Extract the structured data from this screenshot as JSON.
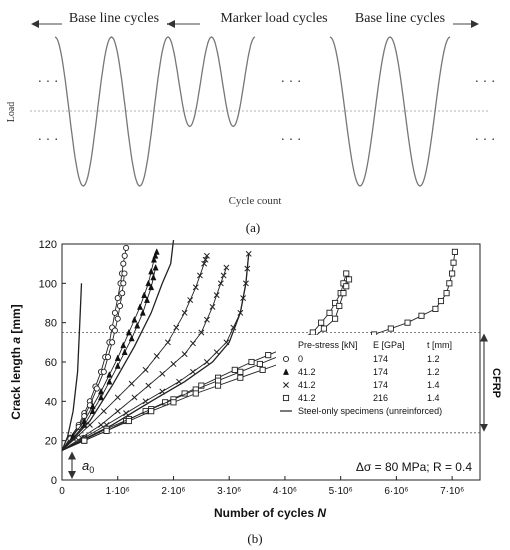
{
  "chart_data": [
    {
      "panel": "(a)",
      "type": "line",
      "segment_labels": [
        "Base line cycles",
        "Marker load cycles",
        "Base line cycles"
      ],
      "ylabel": "Load",
      "xlabel": "Cycle count",
      "ellipsis": "· · ·",
      "waveform": {
        "base_cycle_amplitude": 1.0,
        "marker_cycle_amplitude": 0.6,
        "segments": [
          {
            "label": "Base line cycles",
            "cycles": 2
          },
          {
            "label": "Marker load cycles",
            "cycles": 2
          },
          {
            "label": "Base line cycles",
            "cycles": 2
          }
        ]
      }
    },
    {
      "panel": "(b)",
      "type": "line",
      "xlabel": "Number of cycles N",
      "xlabel_parts": {
        "main": "Number of cycles ",
        "var": "N"
      },
      "ylabel": "Crack length a [mm]",
      "ylabel_parts": {
        "pre": "Crack length ",
        "var": "a",
        "post": " [mm]"
      },
      "xlim": [
        0,
        7500000
      ],
      "ylim": [
        0,
        120
      ],
      "x_ticks": [
        {
          "value": 0,
          "label": "0"
        },
        {
          "value": 1000000,
          "label": "1·10⁶"
        },
        {
          "value": 2000000,
          "label": "2·10⁶"
        },
        {
          "value": 3000000,
          "label": "3·10⁶"
        },
        {
          "value": 4000000,
          "label": "4·10⁶"
        },
        {
          "value": 5000000,
          "label": "5·10⁶"
        },
        {
          "value": 6000000,
          "label": "6·10⁶"
        },
        {
          "value": 7000000,
          "label": "7·10⁶"
        }
      ],
      "y_ticks": [
        0,
        20,
        40,
        60,
        80,
        100,
        120
      ],
      "reference_lines": [
        24,
        75
      ],
      "cfrp_label": "CFRP",
      "a0_label": "a0",
      "a0_parts": {
        "var": "a",
        "sub": "0"
      },
      "a0_value": 15,
      "annotation": "Δσ = 80 MPa; R = 0.4",
      "legend": {
        "headers": [
          "Pre-stress [kN]",
          "E [GPa]",
          "t [mm]"
        ],
        "rows": [
          {
            "marker": "circle",
            "prestress": "0",
            "E": "174",
            "t": "1.2"
          },
          {
            "marker": "triangle",
            "prestress": "41.2",
            "E": "174",
            "t": "1.2"
          },
          {
            "marker": "cross",
            "prestress": "41.2",
            "E": "174",
            "t": "1.4"
          },
          {
            "marker": "square",
            "prestress": "41.2",
            "E": "216",
            "t": "1.4"
          },
          {
            "marker": "line",
            "label": "Steel-only specimens (unreinforced)"
          }
        ]
      },
      "series": [
        {
          "marker": "line",
          "points": [
            [
              0,
              15
            ],
            [
              100000,
              22
            ],
            [
              200000,
              35
            ],
            [
              280000,
              55
            ],
            [
              320000,
              80
            ],
            [
              350000,
              100
            ]
          ]
        },
        {
          "marker": "circle",
          "points": [
            [
              0,
              15
            ],
            [
              300000,
              28
            ],
            [
              500000,
              40
            ],
            [
              700000,
              55
            ],
            [
              850000,
              70
            ],
            [
              950000,
              85
            ],
            [
              1050000,
              100
            ],
            [
              1100000,
              110
            ],
            [
              1150000,
              118
            ]
          ]
        },
        {
          "marker": "circle",
          "points": [
            [
              0,
              15
            ],
            [
              300000,
              27
            ],
            [
              500000,
              38
            ],
            [
              750000,
              55
            ],
            [
              900000,
              70
            ],
            [
              1000000,
              82
            ],
            [
              1080000,
              95
            ],
            [
              1120000,
              105
            ]
          ]
        },
        {
          "marker": "triangle",
          "points": [
            [
              0,
              15
            ],
            [
              400000,
              30
            ],
            [
              700000,
              45
            ],
            [
              1000000,
              62
            ],
            [
              1200000,
              75
            ],
            [
              1400000,
              88
            ],
            [
              1550000,
              100
            ],
            [
              1650000,
              112
            ],
            [
              1700000,
              116
            ]
          ]
        },
        {
          "marker": "triangle",
          "points": [
            [
              0,
              15
            ],
            [
              400000,
              28
            ],
            [
              700000,
              42
            ],
            [
              1000000,
              58
            ],
            [
              1250000,
              72
            ],
            [
              1450000,
              85
            ],
            [
              1600000,
              98
            ],
            [
              1680000,
              108
            ]
          ]
        },
        {
          "marker": "line",
          "points": [
            [
              0,
              15
            ],
            [
              500000,
              30
            ],
            [
              900000,
              48
            ],
            [
              1300000,
              68
            ],
            [
              1600000,
              85
            ],
            [
              1800000,
              100
            ],
            [
              1950000,
              110
            ],
            [
              2000000,
              122
            ]
          ]
        },
        {
          "marker": "cross",
          "points": [
            [
              0,
              15
            ],
            [
              500000,
              28
            ],
            [
              1000000,
              42
            ],
            [
              1500000,
              56
            ],
            [
              1900000,
              70
            ],
            [
              2200000,
              85
            ],
            [
              2400000,
              98
            ],
            [
              2550000,
              110
            ],
            [
              2600000,
              114
            ]
          ]
        },
        {
          "marker": "cross",
          "points": [
            [
              0,
              15
            ],
            [
              700000,
              28
            ],
            [
              1300000,
              42
            ],
            [
              1800000,
              54
            ],
            [
              2200000,
              64
            ],
            [
              2500000,
              75
            ],
            [
              2700000,
              88
            ],
            [
              2850000,
              100
            ],
            [
              2950000,
              108
            ]
          ]
        },
        {
          "marker": "cross",
          "points": [
            [
              0,
              15
            ],
            [
              800000,
              28
            ],
            [
              1500000,
              40
            ],
            [
              2100000,
              50
            ],
            [
              2600000,
              60
            ],
            [
              2950000,
              70
            ],
            [
              3200000,
              85
            ],
            [
              3300000,
              100
            ],
            [
              3350000,
              115
            ]
          ]
        },
        {
          "marker": "line",
          "points": [
            [
              0,
              15
            ],
            [
              900000,
              28
            ],
            [
              1600000,
              40
            ],
            [
              2200000,
              50
            ],
            [
              2700000,
              60
            ],
            [
              3000000,
              70
            ],
            [
              3200000,
              85
            ],
            [
              3300000,
              100
            ],
            [
              3350000,
              115
            ]
          ]
        },
        {
          "marker": "square",
          "points": [
            [
              0,
              15
            ],
            [
              800000,
              25
            ],
            [
              1500000,
              35
            ],
            [
              2200000,
              44
            ],
            [
              2800000,
              52
            ],
            [
              3400000,
              60
            ],
            [
              4000000,
              67
            ],
            [
              4500000,
              75
            ],
            [
              4800000,
              85
            ],
            [
              5000000,
              95
            ],
            [
              5100000,
              105
            ]
          ]
        },
        {
          "marker": "square",
          "points": [
            [
              0,
              15
            ],
            [
              800000,
              26
            ],
            [
              1600000,
              36
            ],
            [
              2400000,
              46
            ],
            [
              3200000,
              55
            ],
            [
              3900000,
              63
            ],
            [
              4500000,
              72
            ],
            [
              4900000,
              82
            ],
            [
              5050000,
              95
            ],
            [
              5150000,
              102
            ]
          ]
        },
        {
          "marker": "square",
          "points": [
            [
              0,
              15
            ],
            [
              800000,
              25
            ],
            [
              1600000,
              35
            ],
            [
              2400000,
              44
            ],
            [
              3200000,
              52
            ],
            [
              4000000,
              60
            ],
            [
              4800000,
              67
            ],
            [
              5600000,
              74
            ],
            [
              6200000,
              80
            ],
            [
              6700000,
              87
            ],
            [
              6900000,
              95
            ],
            [
              7000000,
              105
            ],
            [
              7050000,
              116
            ]
          ]
        }
      ]
    }
  ],
  "captions": {
    "a": "(a)",
    "b": "(b)"
  }
}
